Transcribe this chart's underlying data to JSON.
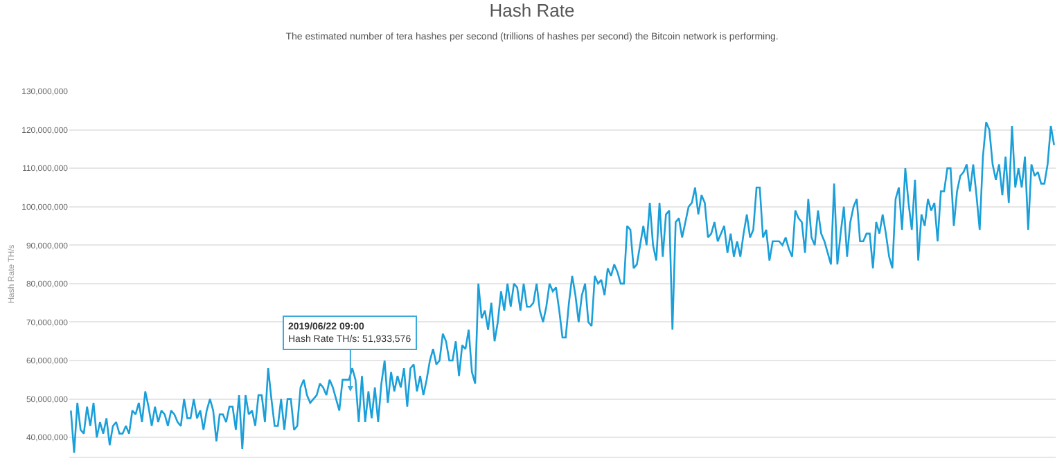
{
  "chart_data": {
    "type": "line",
    "title": "Hash Rate",
    "subtitle": "The estimated number of tera hashes per second (trillions of hashes per second) the Bitcoin network is performing.",
    "ylabel": "Hash Rate TH/s",
    "annotations": [
      {
        "text": "2019/06/22 09:00\nHash Rate TH/s: 51,933,576",
        "y": 51933576
      }
    ],
    "ylim": [
      35000000.0,
      130000000.0
    ],
    "yticks": [
      {
        "value": 40000000.0,
        "label": "40,000,000"
      },
      {
        "value": 50000000.0,
        "label": "50,000,000"
      },
      {
        "value": 60000000.0,
        "label": "60,000,000"
      },
      {
        "value": 70000000.0,
        "label": "70,000,000"
      },
      {
        "value": 80000000.0,
        "label": "80,000,000"
      },
      {
        "value": 90000000.0,
        "label": "90,000,000"
      },
      {
        "value": 100000000.0,
        "label": "100,000,000"
      },
      {
        "value": 110000000.0,
        "label": "110,000,000"
      },
      {
        "value": 120000000.0,
        "label": "120,000,000"
      },
      {
        "value": 130000000.0,
        "label": "130,000,000"
      }
    ],
    "grid": "y",
    "tick_labels": "y",
    "marker": "none",
    "line_style": "solid",
    "series": [
      {
        "color": "#1a9fd9",
        "values": [
          47000000.0,
          36000000.0,
          49000000.0,
          42000000.0,
          41000000.0,
          48000000.0,
          43000000.0,
          49000000.0,
          40000000.0,
          44000000.0,
          41000000.0,
          45000000.0,
          38000000.0,
          43000000.0,
          44000000.0,
          41000000.0,
          41000000.0,
          43000000.0,
          41000000.0,
          47000000.0,
          46000000.0,
          49000000.0,
          44000000.0,
          52000000.0,
          48000000.0,
          43000000.0,
          48000000.0,
          44000000.0,
          47000000.0,
          46000000.0,
          43000000.0,
          47000000.0,
          46000000.0,
          44000000.0,
          43000000.0,
          50000000.0,
          45000000.0,
          45000000.0,
          50000000.0,
          45000000.0,
          47000000.0,
          42000000.0,
          47000000.0,
          50000000.0,
          47000000.0,
          39000000.0,
          46000000.0,
          46000000.0,
          44000000.0,
          48000000.0,
          48000000.0,
          42000000.0,
          51000000.0,
          37000000.0,
          51000000.0,
          46000000.0,
          47000000.0,
          43000000.0,
          51000000.0,
          51000000.0,
          44000000.0,
          58000000.0,
          50000000.0,
          43000000.0,
          43000000.0,
          50000000.0,
          42000000.0,
          50000000.0,
          50000000.0,
          42000000.0,
          43000000.0,
          53000000.0,
          55000000.0,
          51000000.0,
          49000000.0,
          50000000.0,
          51000000.0,
          54000000.0,
          53000000.0,
          51000000.0,
          55000000.0,
          53000000.0,
          50000000.0,
          47000000.0,
          55000000.0,
          55000000.0,
          55000000.0,
          58000000.0,
          55000000.0,
          44000000.0,
          56000000.0,
          44000000.0,
          52000000.0,
          45000000.0,
          53000000.0,
          44000000.0,
          54000000.0,
          60000000.0,
          49000000.0,
          57000000.0,
          52000000.0,
          56000000.0,
          53000000.0,
          58000000.0,
          48000000.0,
          58000000.0,
          59000000.0,
          52000000.0,
          56000000.0,
          51000000.0,
          55000000.0,
          60000000.0,
          63000000.0,
          59000000.0,
          60000000.0,
          67000000.0,
          65000000.0,
          60000000.0,
          60000000.0,
          65000000.0,
          56000000.0,
          64000000.0,
          63000000.0,
          68000000.0,
          57000000.0,
          54000000.0,
          80000000.0,
          71000000.0,
          73000000.0,
          68000000.0,
          75000000.0,
          65000000.0,
          70000000.0,
          78000000.0,
          73000000.0,
          80000000.0,
          74000000.0,
          80000000.0,
          79000000.0,
          73000000.0,
          80000000.0,
          74000000.0,
          74000000.0,
          75000000.0,
          80000000.0,
          73000000.0,
          70000000.0,
          74000000.0,
          80000000.0,
          78000000.0,
          79000000.0,
          73000000.0,
          66000000.0,
          66000000.0,
          75000000.0,
          82000000.0,
          77000000.0,
          70000000.0,
          77000000.0,
          80000000.0,
          70000000.0,
          69000000.0,
          82000000.0,
          80000000.0,
          81000000.0,
          77000000.0,
          84000000.0,
          82000000.0,
          85000000.0,
          83000000.0,
          80000000.0,
          80000000.0,
          95000000.0,
          94000000.0,
          84000000.0,
          85000000.0,
          90000000.0,
          95000000.0,
          90000000.0,
          101000000.0,
          90000000.0,
          86000000.0,
          101000000.0,
          87000000.0,
          98000000.0,
          99000000.0,
          68000000.0,
          96000000.0,
          97000000.0,
          92000000.0,
          96000000.0,
          100000000.0,
          101000000.0,
          105000000.0,
          98000000.0,
          103000000.0,
          101000000.0,
          92000000.0,
          93000000.0,
          96000000.0,
          91000000.0,
          93000000.0,
          95000000.0,
          88000000.0,
          93000000.0,
          87000000.0,
          91000000.0,
          87000000.0,
          93000000.0,
          98000000.0,
          92000000.0,
          94000000.0,
          105000000.0,
          105000000.0,
          92000000.0,
          94000000.0,
          86000000.0,
          91000000.0,
          91000000.0,
          91000000.0,
          90000000.0,
          92000000.0,
          89000000.0,
          87000000.0,
          99000000.0,
          97000000.0,
          96000000.0,
          88000000.0,
          102000000.0,
          92000000.0,
          90000000.0,
          99000000.0,
          93000000.0,
          91000000.0,
          88000000.0,
          85000000.0,
          106000000.0,
          85000000.0,
          93000000.0,
          100000000.0,
          87000000.0,
          96000000.0,
          100000000.0,
          102000000.0,
          91000000.0,
          91000000.0,
          93000000.0,
          93000000.0,
          84000000.0,
          96000000.0,
          93000000.0,
          98000000.0,
          93000000.0,
          87000000.0,
          84000000.0,
          102000000.0,
          105000000.0,
          94000000.0,
          110000000.0,
          101000000.0,
          94000000.0,
          107000000.0,
          86000000.0,
          98000000.0,
          95000000.0,
          102000000.0,
          99000000.0,
          101000000.0,
          91000000.0,
          104000000.0,
          104000000.0,
          110000000.0,
          110000000.0,
          95000000.0,
          104000000.0,
          108000000.0,
          109000000.0,
          111000000.0,
          104000000.0,
          111000000.0,
          103000000.0,
          94000000.0,
          113000000.0,
          122000000.0,
          120000000.0,
          111000000.0,
          107000000.0,
          111000000.0,
          103000000.0,
          113000000.0,
          101000000.0,
          121000000.0,
          105000000.0,
          110000000.0,
          105000000.0,
          113000000.0,
          94000000.0,
          111000000.0,
          108000000.0,
          109000000.0,
          106000000.0,
          106000000.0,
          111000000.0,
          121000000.0,
          116000000.0
        ]
      }
    ]
  }
}
